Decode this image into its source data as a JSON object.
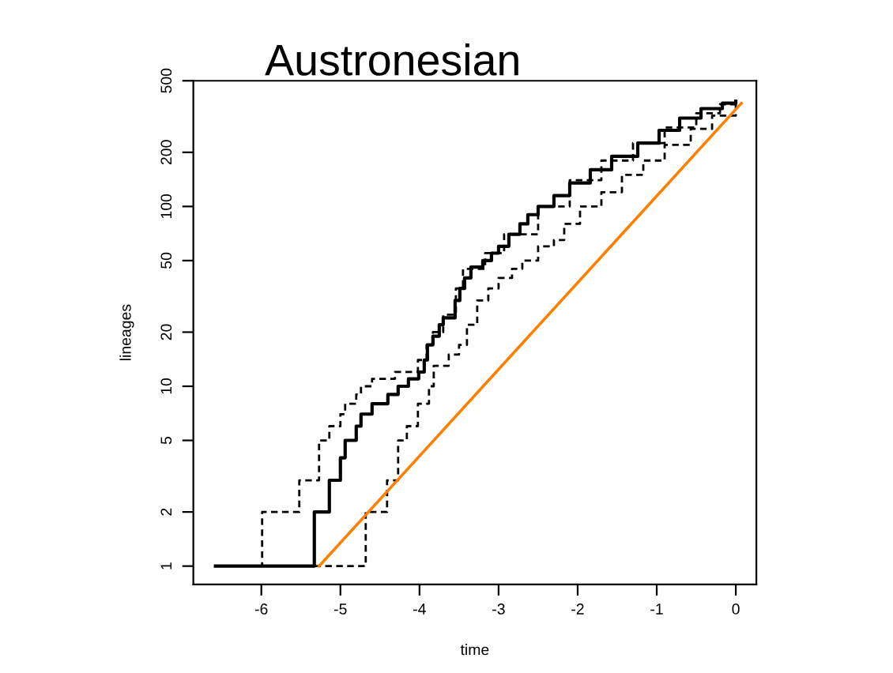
{
  "chart_data": {
    "type": "step",
    "title": "Austronesian",
    "xlabel": "time",
    "ylabel": "lineages",
    "log": "y",
    "grid": false,
    "legend": false,
    "xlim": [
      -6.86,
      0.26
    ],
    "ylim": [
      0.79,
      500
    ],
    "xticks": [
      -6,
      -5,
      -4,
      -3,
      -2,
      -1,
      0
    ],
    "yticks": [
      1,
      2,
      5,
      10,
      20,
      50,
      100,
      200,
      500
    ],
    "series": [
      {
        "color": "#000000",
        "line_style": "solid",
        "x": [
          -6.58,
          -5.33,
          -5.14,
          -5.0,
          -4.94,
          -4.8,
          -4.74,
          -4.6,
          -4.4,
          -4.27,
          -4.14,
          -4.01,
          -3.94,
          -3.9,
          -3.83,
          -3.75,
          -3.7,
          -3.55,
          -3.49,
          -3.43,
          -3.35,
          -3.2,
          -3.09,
          -3.0,
          -2.87,
          -2.73,
          -2.63,
          -2.5,
          -2.3,
          -2.1,
          -1.84,
          -1.57,
          -1.24,
          -0.97,
          -0.71,
          -0.44,
          -0.17,
          0.0
        ],
        "values": [
          1,
          2,
          3,
          4,
          5,
          6,
          7,
          8,
          9,
          10,
          11,
          12,
          14,
          17,
          19,
          22,
          24,
          30,
          35,
          40,
          46,
          50,
          55,
          60,
          70,
          80,
          90,
          100,
          115,
          135,
          160,
          190,
          225,
          265,
          310,
          350,
          375,
          385
        ]
      },
      {
        "color": "#000000",
        "line_style": "dashed",
        "x": [
          -6.58,
          -5.99,
          -5.52,
          -5.27,
          -5.14,
          -5.0,
          -4.94,
          -4.8,
          -4.74,
          -4.6,
          -4.31,
          -4.02,
          -3.91,
          -3.83,
          -3.7,
          -3.54,
          -3.45,
          -3.17,
          -2.93,
          -2.5,
          -2.1,
          -1.7,
          -1.3,
          -0.9,
          -0.5,
          -0.2,
          0.0
        ],
        "values": [
          1,
          2,
          3,
          5,
          6,
          7,
          8,
          9,
          10,
          11,
          12,
          14,
          17,
          20,
          25,
          35,
          45,
          55,
          70,
          100,
          140,
          180,
          225,
          275,
          330,
          370,
          385
        ]
      },
      {
        "color": "#000000",
        "line_style": "dashed",
        "x": [
          -6.58,
          -4.68,
          -4.41,
          -4.27,
          -4.16,
          -4.02,
          -3.88,
          -3.82,
          -3.63,
          -3.5,
          -3.4,
          -3.27,
          -3.13,
          -3.0,
          -2.83,
          -2.7,
          -2.5,
          -2.3,
          -2.17,
          -1.97,
          -1.7,
          -1.44,
          -1.17,
          -0.9,
          -0.57,
          -0.3,
          0.0
        ],
        "values": [
          1,
          2,
          3,
          5,
          6,
          8,
          10,
          13,
          15,
          17,
          22,
          30,
          35,
          40,
          45,
          50,
          60,
          65,
          80,
          100,
          120,
          150,
          180,
          220,
          270,
          320,
          385
        ]
      },
      {
        "type": "line",
        "color": "#ff7f00",
        "line_style": "solid",
        "x": [
          -5.27,
          0.07
        ],
        "values": [
          1,
          375
        ]
      }
    ]
  }
}
